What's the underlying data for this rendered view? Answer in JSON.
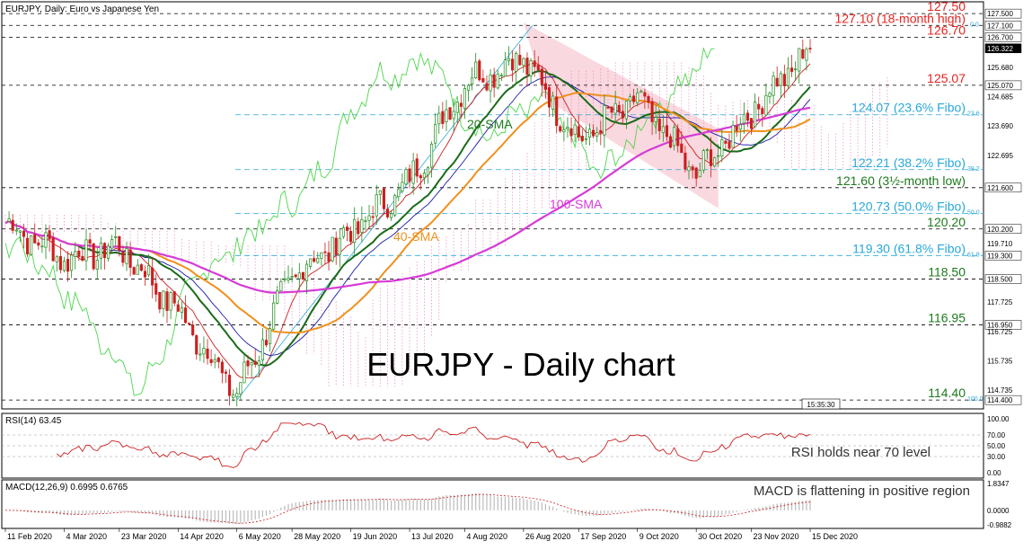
{
  "header": {
    "main_title": "EURJPY, Daily:  Euro vs Japanese Yen",
    "rsi_title": "RSI(14) 63.45",
    "macd_title": "MACD(12,26,9) 0.6995 0.6765"
  },
  "center_title": "EURJPY - Daily chart",
  "price_axis": {
    "ticks": [
      "127.500",
      "127.100",
      "126.700",
      "126.322",
      "125.680",
      "125.070",
      "124.685",
      "123.690",
      "122.695",
      "121.600",
      "120.200",
      "119.710",
      "119.300",
      "118.500",
      "117.725",
      "116.950",
      "116.725",
      "115.735",
      "114.735",
      "114.400"
    ],
    "highlighted": [
      "127.500",
      "127.100",
      "126.700",
      "126.322",
      "125.070",
      "121.600",
      "120.200",
      "119.300",
      "118.500",
      "116.950",
      "114.400"
    ],
    "current": "126.322"
  },
  "levels": [
    {
      "label": "127.50",
      "value": 127.5,
      "color": "#e8231f"
    },
    {
      "label": "127.10 (18-month high)",
      "value": 127.1,
      "color": "#e8231f"
    },
    {
      "label": "126.70",
      "value": 126.7,
      "color": "#e8231f"
    },
    {
      "label": "125.07",
      "value": 125.07,
      "color": "#e8231f"
    },
    {
      "label": "124.07 (23.6% Fibo)",
      "value": 124.07,
      "color": "#29a8d8",
      "fibo_tag": "23.6"
    },
    {
      "label": "122.21 (38.2% Fibo)",
      "value": 122.21,
      "color": "#29a8d8",
      "fibo_tag": "38.2"
    },
    {
      "label": "121.60 (3½-month low)",
      "value": 121.6,
      "color": "#1e7a1e"
    },
    {
      "label": "120.73 (50.0% Fibo)",
      "value": 120.73,
      "color": "#29a8d8",
      "fibo_tag": "50.0"
    },
    {
      "label": "120.20",
      "value": 120.2,
      "color": "#1e7a1e"
    },
    {
      "label": "119.30 (61.8% Fibo)",
      "value": 119.3,
      "color": "#29a8d8",
      "fibo_tag": "61.8"
    },
    {
      "label": "118.50",
      "value": 118.5,
      "color": "#1e7a1e"
    },
    {
      "label": "116.95",
      "value": 116.95,
      "color": "#1e7a1e"
    },
    {
      "label": "114.40",
      "value": 114.4,
      "color": "#1e7a1e",
      "fibo_tag": "100.0"
    }
  ],
  "fibo_zero_tag": "0.0",
  "indicator_labels": [
    {
      "text": "20-SMA",
      "color": "#1e7a1e"
    },
    {
      "text": "40-SMA",
      "color": "#f0901e"
    },
    {
      "text": "100-SMA",
      "color": "#d63bd6"
    }
  ],
  "time_axis": [
    "11 Feb 2020",
    "4 Mar 2020",
    "23 Mar 2020",
    "14 Apr 2020",
    "6 May 2020",
    "28 May 2020",
    "19 Jun 2020",
    "13 Jul 2020",
    "4 Aug 2020",
    "26 Aug 2020",
    "17 Sep 2020",
    "9 Oct 2020",
    "30 Oct 2020",
    "23 Nov 2020",
    "15 Dec 2020"
  ],
  "rsi_panel": {
    "ticks": [
      "100.00",
      "70.00",
      "50.00",
      "30.00",
      "0.00"
    ],
    "note": "RSI holds near 70 level"
  },
  "macd_panel": {
    "ticks": [
      "1.8347",
      "0.0000",
      "-0.9882"
    ],
    "note": "MACD is flattening in positive region"
  },
  "time_box": "15:35:30",
  "colors": {
    "bull_candle": "#1e8a1e",
    "bear_candle": "#cc1f1f",
    "sma20": "#1a6b1a",
    "sma40": "#f0901e",
    "sma100": "#d63bd6",
    "tenkan": "#cc1f1f",
    "kijun": "#1a1aa8",
    "chikou": "#4cd64c",
    "cloud": "#e87ab8",
    "channel": "#f5b8c4",
    "fibo": "#29a8d8"
  },
  "chart_data": {
    "type": "candlestick",
    "symbol": "EURJPY",
    "timeframe": "Daily",
    "title": "EURJPY - Daily chart",
    "ylim": [
      114.1,
      127.9
    ],
    "key_points": [
      {
        "date": "11 Feb 2020",
        "close": 120.4
      },
      {
        "date": "4 Mar 2020",
        "close": 119.2
      },
      {
        "date": "23 Mar 2020",
        "close": 119.6
      },
      {
        "date": "14 Apr 2020",
        "close": 117.4
      },
      {
        "date": "6 May 2020",
        "close": 114.6
      },
      {
        "date": "28 May 2020",
        "close": 118.6
      },
      {
        "date": "19 Jun 2020",
        "close": 120.1
      },
      {
        "date": "13 Jul 2020",
        "close": 121.8
      },
      {
        "date": "4 Aug 2020",
        "close": 125.2
      },
      {
        "date": "26 Aug 2020",
        "close": 126.0
      },
      {
        "date": "17 Sep 2020",
        "close": 123.2
      },
      {
        "date": "9 Oct 2020",
        "close": 124.6
      },
      {
        "date": "30 Oct 2020",
        "close": 122.0
      },
      {
        "date": "23 Nov 2020",
        "close": 124.2
      },
      {
        "date": "15 Dec 2020",
        "close": 126.32
      }
    ],
    "sma_labels": [
      "20-SMA",
      "40-SMA",
      "100-SMA"
    ],
    "rsi": {
      "last": 63.45,
      "levels": [
        100,
        70,
        50,
        30,
        0
      ]
    },
    "macd": {
      "macd": 0.6995,
      "signal": 0.6765,
      "ylim": [
        -0.9882,
        1.8347
      ]
    }
  }
}
